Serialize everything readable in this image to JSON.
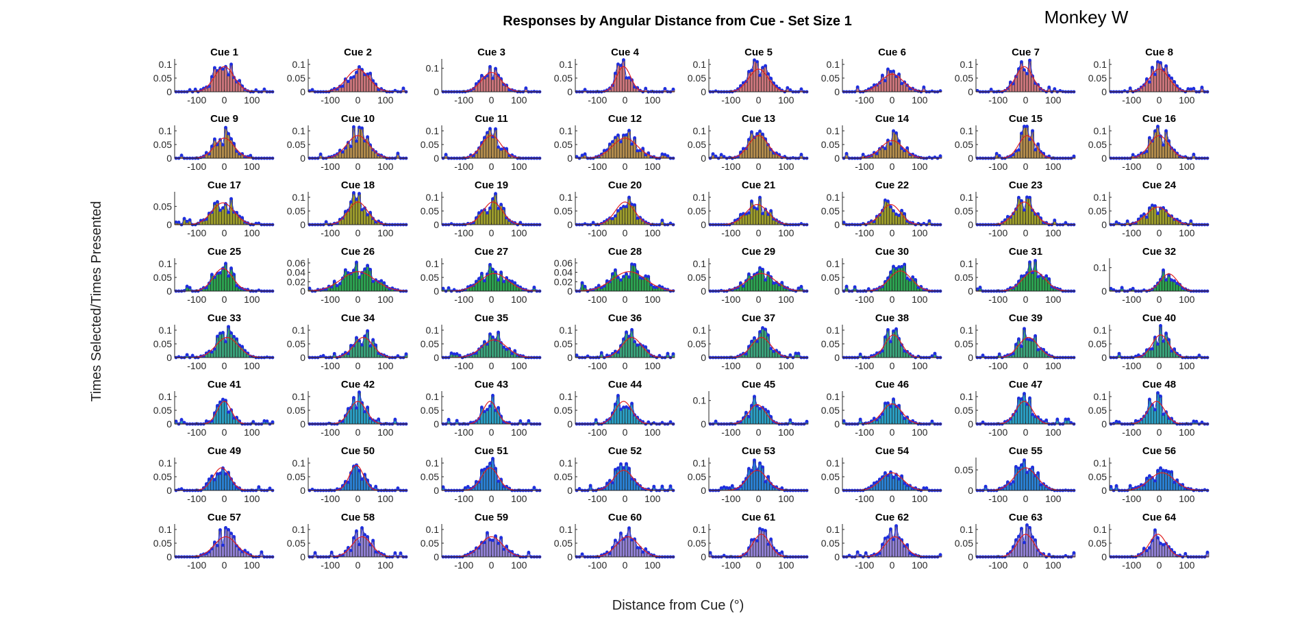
{
  "figure": {
    "title": "Responses by Angular Distance from Cue - Set Size 1",
    "annotation": "Monkey W",
    "xlabel": "Distance from Cue (°)",
    "ylabel": "Times Selected/Times Presented"
  },
  "colors": {
    "bar_edge": "#222222",
    "points": "#1f2fe0",
    "fit": "#e02020",
    "axis": "#262626",
    "row_fills": [
      "#c8747a",
      "#b08a4c",
      "#9a9a2c",
      "#2ca050",
      "#3aa07a",
      "#2a9cc0",
      "#2a7fd0",
      "#8f7fd0"
    ]
  },
  "chart_data": {
    "type": "bar",
    "layout": "grid 8x8 small multiples",
    "x_range": [
      -180,
      180
    ],
    "x_ticks": [
      -100,
      0,
      100
    ],
    "bin_width": 10,
    "panels": [
      {
        "title": "Cue 1",
        "y_ticks": [
          "0",
          "0.05",
          "0.1"
        ],
        "ymax": 0.12,
        "center": 0,
        "sigma": 35,
        "peak": 0.1,
        "seed": 1
      },
      {
        "title": "Cue 2",
        "y_ticks": [
          "0",
          "0.05",
          "0.1"
        ],
        "ymax": 0.12,
        "center": 0,
        "sigma": 40,
        "peak": 0.09,
        "seed": 2
      },
      {
        "title": "Cue 3",
        "y_ticks": [
          "0",
          "0.1"
        ],
        "ymax": 0.14,
        "center": 0,
        "sigma": 35,
        "peak": 0.09,
        "seed": 3
      },
      {
        "title": "Cue 4",
        "y_ticks": [
          "0",
          "0.05",
          "0.1"
        ],
        "ymax": 0.12,
        "center": -5,
        "sigma": 25,
        "peak": 0.1,
        "seed": 4
      },
      {
        "title": "Cue 5",
        "y_ticks": [
          "0",
          "0.05",
          "0.1"
        ],
        "ymax": 0.12,
        "center": 0,
        "sigma": 35,
        "peak": 0.09,
        "seed": 5
      },
      {
        "title": "Cue 6",
        "y_ticks": [
          "0",
          "0.05",
          "0.1"
        ],
        "ymax": 0.12,
        "center": 0,
        "sigma": 40,
        "peak": 0.07,
        "seed": 6
      },
      {
        "title": "Cue 7",
        "y_ticks": [
          "0",
          "0.05",
          "0.1"
        ],
        "ymax": 0.12,
        "center": -5,
        "sigma": 30,
        "peak": 0.1,
        "seed": 7
      },
      {
        "title": "Cue 8",
        "y_ticks": [
          "0",
          "0.05",
          "0.1"
        ],
        "ymax": 0.12,
        "center": 0,
        "sigma": 35,
        "peak": 0.09,
        "seed": 8
      },
      {
        "title": "Cue 9",
        "y_ticks": [
          "0",
          "0.05",
          "0.1"
        ],
        "ymax": 0.12,
        "center": 0,
        "sigma": 35,
        "peak": 0.08,
        "seed": 9
      },
      {
        "title": "Cue 10",
        "y_ticks": [
          "0",
          "0.05",
          "0.1"
        ],
        "ymax": 0.12,
        "center": 0,
        "sigma": 40,
        "peak": 0.09,
        "seed": 10
      },
      {
        "title": "Cue 11",
        "y_ticks": [
          "0",
          "0.05",
          "0.1"
        ],
        "ymax": 0.12,
        "center": 0,
        "sigma": 35,
        "peak": 0.09,
        "seed": 11
      },
      {
        "title": "Cue 12",
        "y_ticks": [
          "0",
          "0.05",
          "0.1"
        ],
        "ymax": 0.12,
        "center": 0,
        "sigma": 45,
        "peak": 0.08,
        "seed": 12
      },
      {
        "title": "Cue 13",
        "y_ticks": [
          "0",
          "0.05",
          "0.1"
        ],
        "ymax": 0.12,
        "center": 0,
        "sigma": 35,
        "peak": 0.09,
        "seed": 13
      },
      {
        "title": "Cue 14",
        "y_ticks": [
          "0",
          "0.05",
          "0.1"
        ],
        "ymax": 0.12,
        "center": 0,
        "sigma": 40,
        "peak": 0.07,
        "seed": 14
      },
      {
        "title": "Cue 15",
        "y_ticks": [
          "0",
          "0.05",
          "0.1"
        ],
        "ymax": 0.12,
        "center": 5,
        "sigma": 30,
        "peak": 0.09,
        "seed": 15
      },
      {
        "title": "Cue 16",
        "y_ticks": [
          "0",
          "0.05",
          "0.1"
        ],
        "ymax": 0.12,
        "center": 0,
        "sigma": 35,
        "peak": 0.09,
        "seed": 16
      },
      {
        "title": "Cue 17",
        "y_ticks": [
          "0",
          "0.05"
        ],
        "ymax": 0.09,
        "center": -5,
        "sigma": 40,
        "peak": 0.065,
        "seed": 17
      },
      {
        "title": "Cue 18",
        "y_ticks": [
          "0",
          "0.05",
          "0.1"
        ],
        "ymax": 0.12,
        "center": 0,
        "sigma": 35,
        "peak": 0.09,
        "seed": 18
      },
      {
        "title": "Cue 19",
        "y_ticks": [
          "0",
          "0.05",
          "0.1"
        ],
        "ymax": 0.12,
        "center": 5,
        "sigma": 35,
        "peak": 0.09,
        "seed": 19
      },
      {
        "title": "Cue 20",
        "y_ticks": [
          "0",
          "0.05",
          "0.1"
        ],
        "ymax": 0.12,
        "center": 0,
        "sigma": 35,
        "peak": 0.09,
        "seed": 20
      },
      {
        "title": "Cue 21",
        "y_ticks": [
          "0",
          "0.05",
          "0.1"
        ],
        "ymax": 0.12,
        "center": -5,
        "sigma": 40,
        "peak": 0.08,
        "seed": 21
      },
      {
        "title": "Cue 22",
        "y_ticks": [
          "0",
          "0.05",
          "0.1"
        ],
        "ymax": 0.12,
        "center": -5,
        "sigma": 35,
        "peak": 0.08,
        "seed": 22
      },
      {
        "title": "Cue 23",
        "y_ticks": [
          "0",
          "0.05",
          "0.1"
        ],
        "ymax": 0.12,
        "center": -5,
        "sigma": 35,
        "peak": 0.09,
        "seed": 23
      },
      {
        "title": "Cue 24",
        "y_ticks": [
          "0",
          "0.05",
          "0.1"
        ],
        "ymax": 0.12,
        "center": -5,
        "sigma": 40,
        "peak": 0.07,
        "seed": 24
      },
      {
        "title": "Cue 25",
        "y_ticks": [
          "0",
          "0.05",
          "0.1"
        ],
        "ymax": 0.12,
        "center": -5,
        "sigma": 35,
        "peak": 0.09,
        "seed": 25
      },
      {
        "title": "Cue 26",
        "y_ticks": [
          "0",
          "0.02",
          "0.04",
          "0.06"
        ],
        "ymax": 0.07,
        "center": 0,
        "sigma": 60,
        "peak": 0.045,
        "seed": 26
      },
      {
        "title": "Cue 27",
        "y_ticks": [
          "0",
          "0.05",
          "0.1"
        ],
        "ymax": 0.12,
        "center": 10,
        "sigma": 50,
        "peak": 0.07,
        "seed": 27
      },
      {
        "title": "Cue 28",
        "y_ticks": [
          "0",
          "0.02",
          "0.04",
          "0.06"
        ],
        "ymax": 0.07,
        "center": 15,
        "sigma": 60,
        "peak": 0.045,
        "seed": 28
      },
      {
        "title": "Cue 29",
        "y_ticks": [
          "0",
          "0.05",
          "0.1"
        ],
        "ymax": 0.12,
        "center": 10,
        "sigma": 50,
        "peak": 0.07,
        "seed": 29
      },
      {
        "title": "Cue 30",
        "y_ticks": [
          "0",
          "0.05",
          "0.1"
        ],
        "ymax": 0.12,
        "center": 30,
        "sigma": 40,
        "peak": 0.08,
        "seed": 30
      },
      {
        "title": "Cue 31",
        "y_ticks": [
          "0",
          "0.05",
          "0.1"
        ],
        "ymax": 0.12,
        "center": 30,
        "sigma": 40,
        "peak": 0.08,
        "seed": 31
      },
      {
        "title": "Cue 32",
        "y_ticks": [
          "0",
          "0.1"
        ],
        "ymax": 0.14,
        "center": 35,
        "sigma": 30,
        "peak": 0.08,
        "seed": 32
      },
      {
        "title": "Cue 33",
        "y_ticks": [
          "0",
          "0.05",
          "0.1"
        ],
        "ymax": 0.12,
        "center": 10,
        "sigma": 40,
        "peak": 0.08,
        "seed": 33
      },
      {
        "title": "Cue 34",
        "y_ticks": [
          "0",
          "0.05",
          "0.1"
        ],
        "ymax": 0.12,
        "center": 20,
        "sigma": 35,
        "peak": 0.08,
        "seed": 34
      },
      {
        "title": "Cue 35",
        "y_ticks": [
          "0",
          "0.05",
          "0.1"
        ],
        "ymax": 0.12,
        "center": 10,
        "sigma": 45,
        "peak": 0.07,
        "seed": 35
      },
      {
        "title": "Cue 36",
        "y_ticks": [
          "0",
          "0.05",
          "0.1"
        ],
        "ymax": 0.12,
        "center": 25,
        "sigma": 35,
        "peak": 0.08,
        "seed": 36
      },
      {
        "title": "Cue 37",
        "y_ticks": [
          "0",
          "0.05",
          "0.1"
        ],
        "ymax": 0.12,
        "center": 10,
        "sigma": 35,
        "peak": 0.08,
        "seed": 37
      },
      {
        "title": "Cue 38",
        "y_ticks": [
          "0",
          "0.05",
          "0.1"
        ],
        "ymax": 0.12,
        "center": 5,
        "sigma": 30,
        "peak": 0.09,
        "seed": 38
      },
      {
        "title": "Cue 39",
        "y_ticks": [
          "0",
          "0.05",
          "0.1"
        ],
        "ymax": 0.12,
        "center": 10,
        "sigma": 35,
        "peak": 0.08,
        "seed": 39
      },
      {
        "title": "Cue 40",
        "y_ticks": [
          "0",
          "0.05",
          "0.1"
        ],
        "ymax": 0.12,
        "center": 5,
        "sigma": 30,
        "peak": 0.09,
        "seed": 40
      },
      {
        "title": "Cue 41",
        "y_ticks": [
          "0",
          "0.05",
          "0.1"
        ],
        "ymax": 0.12,
        "center": 0,
        "sigma": 25,
        "peak": 0.09,
        "seed": 41
      },
      {
        "title": "Cue 42",
        "y_ticks": [
          "0",
          "0.05",
          "0.1"
        ],
        "ymax": 0.12,
        "center": 0,
        "sigma": 30,
        "peak": 0.09,
        "seed": 42
      },
      {
        "title": "Cue 43",
        "y_ticks": [
          "0",
          "0.05",
          "0.1"
        ],
        "ymax": 0.12,
        "center": -5,
        "sigma": 25,
        "peak": 0.09,
        "seed": 43
      },
      {
        "title": "Cue 44",
        "y_ticks": [
          "0",
          "0.05",
          "0.1"
        ],
        "ymax": 0.12,
        "center": -5,
        "sigma": 30,
        "peak": 0.09,
        "seed": 44
      },
      {
        "title": "Cue 45",
        "y_ticks": [
          "0",
          "0.1"
        ],
        "ymax": 0.14,
        "center": -5,
        "sigma": 30,
        "peak": 0.09,
        "seed": 45
      },
      {
        "title": "Cue 46",
        "y_ticks": [
          "0",
          "0.05",
          "0.1"
        ],
        "ymax": 0.12,
        "center": 0,
        "sigma": 35,
        "peak": 0.08,
        "seed": 46
      },
      {
        "title": "Cue 47",
        "y_ticks": [
          "0",
          "0.05",
          "0.1"
        ],
        "ymax": 0.12,
        "center": -5,
        "sigma": 30,
        "peak": 0.09,
        "seed": 47
      },
      {
        "title": "Cue 48",
        "y_ticks": [
          "0",
          "0.05",
          "0.1"
        ],
        "ymax": 0.12,
        "center": -10,
        "sigma": 30,
        "peak": 0.09,
        "seed": 48
      },
      {
        "title": "Cue 49",
        "y_ticks": [
          "0",
          "0.05",
          "0.1"
        ],
        "ymax": 0.12,
        "center": -10,
        "sigma": 30,
        "peak": 0.09,
        "seed": 49
      },
      {
        "title": "Cue 50",
        "y_ticks": [
          "0",
          "0.05",
          "0.1"
        ],
        "ymax": 0.12,
        "center": -5,
        "sigma": 25,
        "peak": 0.1,
        "seed": 50
      },
      {
        "title": "Cue 51",
        "y_ticks": [
          "0",
          "0.05",
          "0.1"
        ],
        "ymax": 0.12,
        "center": -5,
        "sigma": 30,
        "peak": 0.09,
        "seed": 51
      },
      {
        "title": "Cue 52",
        "y_ticks": [
          "0",
          "0.05",
          "0.1"
        ],
        "ymax": 0.12,
        "center": -5,
        "sigma": 35,
        "peak": 0.08,
        "seed": 52
      },
      {
        "title": "Cue 53",
        "y_ticks": [
          "0",
          "0.05",
          "0.1"
        ],
        "ymax": 0.12,
        "center": -5,
        "sigma": 35,
        "peak": 0.08,
        "seed": 53
      },
      {
        "title": "Cue 54",
        "y_ticks": [
          "0",
          "0.05",
          "0.1"
        ],
        "ymax": 0.12,
        "center": 0,
        "sigma": 40,
        "peak": 0.07,
        "seed": 54
      },
      {
        "title": "Cue 55",
        "y_ticks": [
          "0",
          "0.05"
        ],
        "ymax": 0.08,
        "center": 0,
        "sigma": 40,
        "peak": 0.06,
        "seed": 55
      },
      {
        "title": "Cue 56",
        "y_ticks": [
          "0",
          "0.05",
          "0.1"
        ],
        "ymax": 0.12,
        "center": 10,
        "sigma": 45,
        "peak": 0.07,
        "seed": 56
      },
      {
        "title": "Cue 57",
        "y_ticks": [
          "0",
          "0.05",
          "0.1"
        ],
        "ymax": 0.12,
        "center": 5,
        "sigma": 40,
        "peak": 0.08,
        "seed": 57
      },
      {
        "title": "Cue 58",
        "y_ticks": [
          "0",
          "0.05",
          "0.1"
        ],
        "ymax": 0.12,
        "center": 15,
        "sigma": 35,
        "peak": 0.08,
        "seed": 58
      },
      {
        "title": "Cue 59",
        "y_ticks": [
          "0",
          "0.05",
          "0.1"
        ],
        "ymax": 0.12,
        "center": 0,
        "sigma": 40,
        "peak": 0.08,
        "seed": 59
      },
      {
        "title": "Cue 60",
        "y_ticks": [
          "0",
          "0.05",
          "0.1"
        ],
        "ymax": 0.12,
        "center": 10,
        "sigma": 40,
        "peak": 0.08,
        "seed": 60
      },
      {
        "title": "Cue 61",
        "y_ticks": [
          "0",
          "0.05",
          "0.1"
        ],
        "ymax": 0.12,
        "center": 10,
        "sigma": 30,
        "peak": 0.09,
        "seed": 61
      },
      {
        "title": "Cue 62",
        "y_ticks": [
          "0",
          "0.05",
          "0.1"
        ],
        "ymax": 0.12,
        "center": 10,
        "sigma": 35,
        "peak": 0.08,
        "seed": 62
      },
      {
        "title": "Cue 63",
        "y_ticks": [
          "0",
          "0.05",
          "0.1"
        ],
        "ymax": 0.12,
        "center": 0,
        "sigma": 30,
        "peak": 0.09,
        "seed": 63
      },
      {
        "title": "Cue 64",
        "y_ticks": [
          "0",
          "0.05",
          "0.1"
        ],
        "ymax": 0.12,
        "center": -5,
        "sigma": 30,
        "peak": 0.09,
        "seed": 64
      }
    ]
  }
}
